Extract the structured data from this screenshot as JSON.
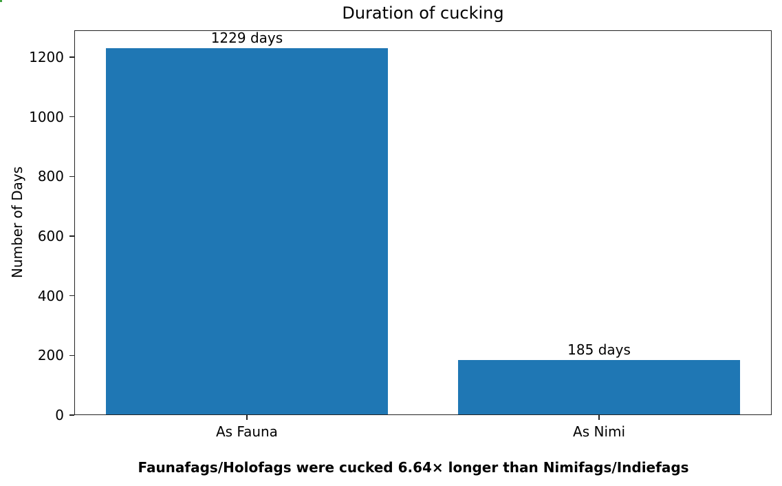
{
  "chart_data": {
    "type": "bar",
    "title": "Duration of cucking",
    "categories": [
      "As Fauna",
      "As Nimi"
    ],
    "values": [
      1229,
      185
    ],
    "bar_labels": [
      "1229 days",
      "185 days"
    ],
    "xlabel": "",
    "ylabel": "Number of Days",
    "ylim": [
      0,
      1290
    ],
    "yticks": [
      0,
      200,
      400,
      600,
      800,
      1000,
      1200
    ],
    "bar_color": "#1f77b4",
    "spine_color": "#222222",
    "text_color": "#000000",
    "grid": false,
    "legend": null,
    "annotation": "Faunafags/Holofags were cucked 6.64× longer than Nimifags/Indiefags"
  }
}
